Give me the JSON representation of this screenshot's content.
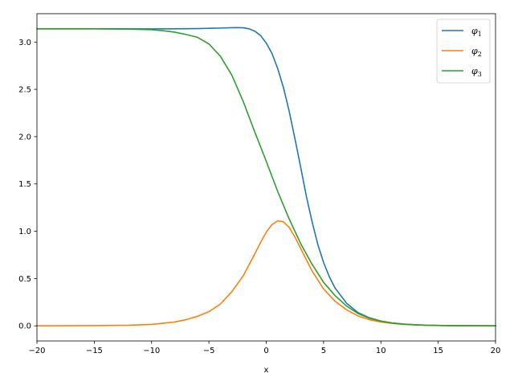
{
  "chart_data": {
    "type": "line",
    "title": "",
    "xlabel": "x",
    "ylabel": "",
    "xlim": [
      -20,
      20
    ],
    "ylim": [
      -0.16,
      3.3
    ],
    "xticks": [
      -20,
      -15,
      -10,
      -5,
      0,
      5,
      10,
      15,
      20
    ],
    "xtick_labels": [
      "−20",
      "−15",
      "−10",
      "−5",
      "0",
      "5",
      "10",
      "15",
      "20"
    ],
    "yticks": [
      0.0,
      0.5,
      1.0,
      1.5,
      2.0,
      2.5,
      3.0
    ],
    "ytick_labels": [
      "0.0",
      "0.5",
      "1.0",
      "1.5",
      "2.0",
      "2.5",
      "3.0"
    ],
    "grid": false,
    "legend_position": "top-right",
    "series": [
      {
        "name": "φ",
        "subscript": "1",
        "color": "#1f77b4",
        "x": [
          -20,
          -15,
          -10,
          -8,
          -6,
          -5,
          -4,
          -3,
          -2.5,
          -2,
          -1.5,
          -1,
          -0.5,
          0,
          0.5,
          1,
          1.5,
          2,
          2.5,
          3,
          3.5,
          4,
          4.5,
          5,
          5.5,
          6,
          7,
          8,
          9,
          10,
          11,
          12,
          13,
          14,
          15,
          16,
          17,
          18,
          20
        ],
        "y": [
          3.14,
          3.14,
          3.139,
          3.14,
          3.142,
          3.145,
          3.148,
          3.152,
          3.153,
          3.151,
          3.14,
          3.115,
          3.07,
          2.99,
          2.88,
          2.72,
          2.52,
          2.27,
          1.98,
          1.68,
          1.37,
          1.1,
          0.86,
          0.67,
          0.52,
          0.4,
          0.24,
          0.14,
          0.085,
          0.05,
          0.03,
          0.018,
          0.011,
          0.006,
          0.004,
          0.002,
          0.001,
          0.001,
          0.0
        ]
      },
      {
        "name": "φ",
        "subscript": "2",
        "color": "#ff7f0e",
        "x": [
          -20,
          -15,
          -12,
          -10,
          -8,
          -7,
          -6,
          -5,
          -4,
          -3,
          -2,
          -1,
          -0.5,
          0,
          0.5,
          1,
          1.5,
          2,
          2.5,
          3,
          3.5,
          4,
          5,
          6,
          7,
          8,
          9,
          10,
          11,
          12,
          13,
          14,
          15,
          16,
          18,
          20
        ],
        "y": [
          0.0,
          0.002,
          0.006,
          0.015,
          0.04,
          0.065,
          0.1,
          0.15,
          0.23,
          0.36,
          0.53,
          0.76,
          0.88,
          0.99,
          1.07,
          1.11,
          1.1,
          1.04,
          0.94,
          0.82,
          0.7,
          0.58,
          0.39,
          0.26,
          0.17,
          0.105,
          0.065,
          0.04,
          0.025,
          0.015,
          0.009,
          0.005,
          0.003,
          0.002,
          0.001,
          0.0
        ]
      },
      {
        "name": "φ",
        "subscript": "3",
        "color": "#2ca02c",
        "x": [
          -20,
          -15,
          -12,
          -10,
          -9,
          -8,
          -7,
          -6,
          -5,
          -4,
          -3,
          -2,
          -1,
          0,
          1,
          2,
          3,
          4,
          5,
          6,
          7,
          8,
          9,
          10,
          11,
          12,
          13,
          14,
          15,
          16,
          18,
          20
        ],
        "y": [
          3.14,
          3.14,
          3.137,
          3.13,
          3.12,
          3.105,
          3.08,
          3.05,
          2.98,
          2.85,
          2.65,
          2.37,
          2.05,
          1.74,
          1.42,
          1.13,
          0.87,
          0.65,
          0.46,
          0.32,
          0.21,
          0.13,
          0.08,
          0.05,
          0.03,
          0.018,
          0.011,
          0.006,
          0.004,
          0.002,
          0.001,
          0.0
        ]
      }
    ]
  }
}
